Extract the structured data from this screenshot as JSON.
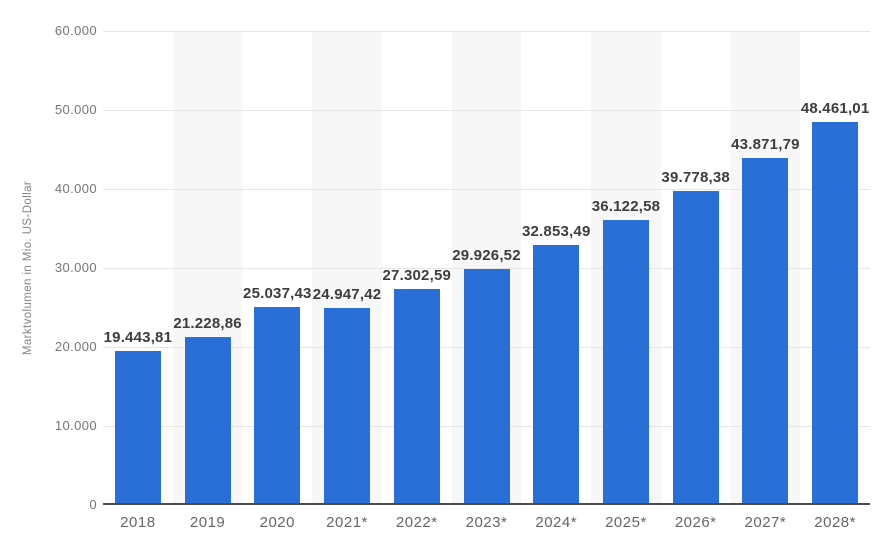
{
  "chart_data": {
    "type": "bar",
    "title": "",
    "xlabel": "",
    "ylabel": "Marktvolumen in Mio. US-Dollar",
    "categories": [
      "2018",
      "2019",
      "2020",
      "2021*",
      "2022*",
      "2023*",
      "2024*",
      "2025*",
      "2026*",
      "2027*",
      "2028*"
    ],
    "values": [
      19443.81,
      21228.86,
      25037.43,
      24947.42,
      27302.59,
      29926.52,
      32853.49,
      36122.58,
      39778.38,
      43871.79,
      48461.01
    ],
    "value_labels": [
      "19.443,81",
      "21.228,86",
      "25.037,43",
      "24.947,42",
      "27.302,59",
      "29.926,52",
      "32.853,49",
      "36.122,58",
      "39.778,38",
      "43.871,79",
      "48.461,01"
    ],
    "ylim": [
      0,
      60000
    ],
    "y_ticks": [
      {
        "value": 0,
        "label": "0"
      },
      {
        "value": 10000,
        "label": "10.000"
      },
      {
        "value": 20000,
        "label": "20.000"
      },
      {
        "value": 30000,
        "label": "30.000"
      },
      {
        "value": 40000,
        "label": "40.000"
      },
      {
        "value": 50000,
        "label": "50.000"
      },
      {
        "value": 60000,
        "label": "60.000"
      }
    ],
    "grid": "horizontal",
    "legend": "none",
    "colors": {
      "bar": "#2a6ed8",
      "grid_line": "#e6e6e6",
      "column_band": "#f7f7f7",
      "axis_line": "#4a4a4a",
      "tick_text": "#767676",
      "x_tick_text": "#666666",
      "value_text": "#3d3d3d",
      "background": "#ffffff"
    }
  }
}
